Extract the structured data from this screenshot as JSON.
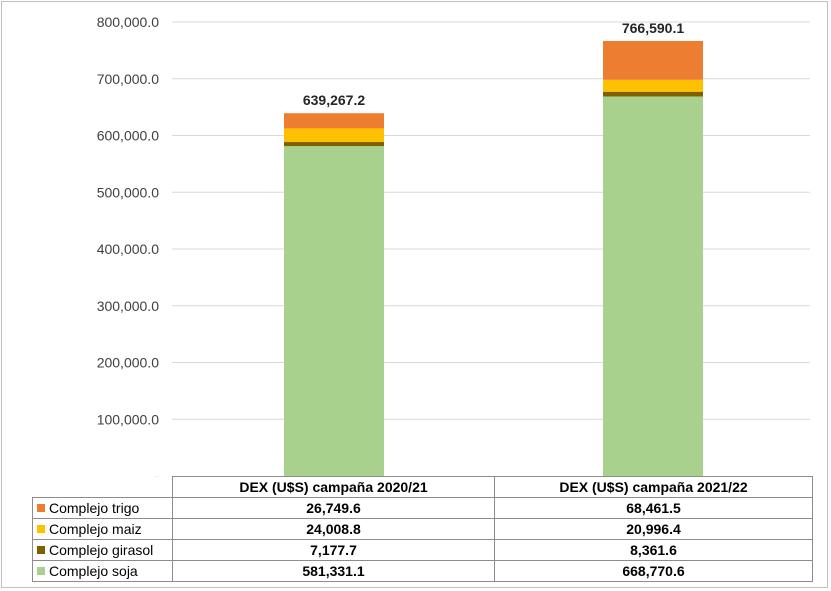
{
  "chart_data": {
    "type": "bar",
    "stacked": true,
    "categories": [
      "DEX (U$S) campaña 2020/21",
      "DEX (U$S) campaña 2021/22"
    ],
    "series": [
      {
        "name": "Complejo soja",
        "color": "#a9d18e",
        "values": [
          581331.1,
          668770.6
        ],
        "display": [
          "581,331.1",
          "668,770.6"
        ]
      },
      {
        "name": "Complejo girasol",
        "color": "#7f6000",
        "values": [
          7177.7,
          8361.6
        ],
        "display": [
          "7,177.7",
          "8,361.6"
        ]
      },
      {
        "name": "Complejo maiz",
        "color": "#ffc000",
        "values": [
          24008.8,
          20996.4
        ],
        "display": [
          "24,008.8",
          "20,996.4"
        ]
      },
      {
        "name": "Complejo trigo",
        "color": "#ed7d31",
        "values": [
          26749.6,
          68461.5
        ],
        "display": [
          "26,749.6",
          "68,461.5"
        ]
      }
    ],
    "totals": [
      "639,267.2",
      "766,590.1"
    ],
    "ylim": [
      0,
      800000
    ],
    "yticks": [
      "-",
      "100,000.0",
      "200,000.0",
      "300,000.0",
      "400,000.0",
      "500,000.0",
      "600,000.0",
      "700,000.0",
      "800,000.0"
    ],
    "grid": true,
    "legend": "table below chart"
  },
  "table": {
    "headers": [
      "DEX (U$S) campaña 2020/21",
      "DEX (U$S) campaña 2021/22"
    ],
    "rows": [
      {
        "label": "Complejo trigo",
        "color": "#ed7d31",
        "values": [
          "26,749.6",
          "68,461.5"
        ]
      },
      {
        "label": "Complejo maiz",
        "color": "#ffc000",
        "values": [
          "24,008.8",
          "20,996.4"
        ]
      },
      {
        "label": "Complejo girasol",
        "color": "#7f6000",
        "values": [
          "7,177.7",
          "8,361.6"
        ]
      },
      {
        "label": "Complejo soja",
        "color": "#a9d18e",
        "values": [
          "581,331.1",
          "668,770.6"
        ]
      }
    ]
  }
}
